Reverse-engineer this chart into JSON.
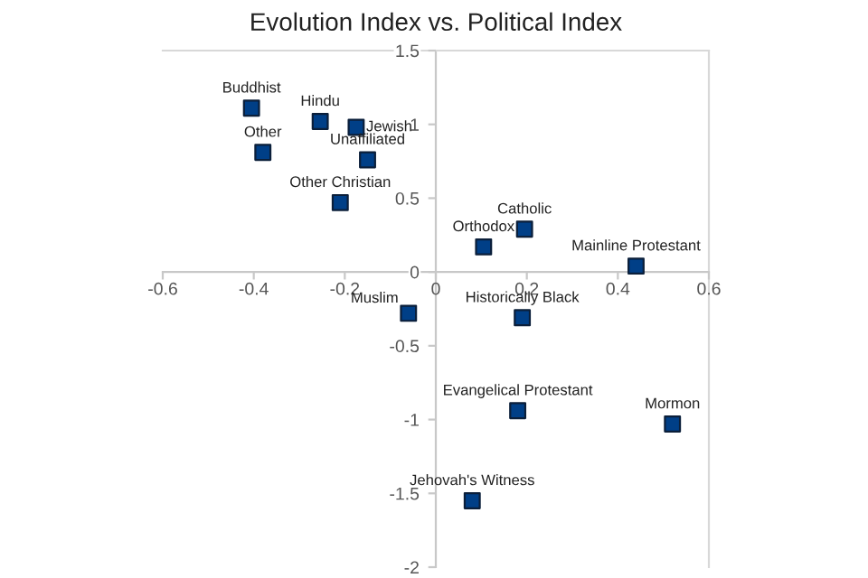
{
  "chart_data": {
    "type": "scatter",
    "title": "Evolution Index vs. Political Index",
    "x": [
      -0.405,
      -0.254,
      -0.175,
      -0.38,
      -0.15,
      -0.21,
      0.195,
      0.105,
      0.44,
      -0.06,
      0.19,
      0.18,
      0.52,
      0.08
    ],
    "values": [
      1.11,
      1.02,
      0.98,
      0.81,
      0.76,
      0.47,
      0.29,
      0.17,
      0.04,
      -0.28,
      -0.31,
      -0.94,
      -1.03,
      -1.55
    ],
    "color": "#003f87",
    "marker": "square",
    "grid": false,
    "xlim": [
      -0.6,
      0.6
    ],
    "ylim": [
      -2,
      1.5
    ],
    "xticks": [
      -0.6,
      -0.4,
      -0.2,
      0,
      0.2,
      0.4,
      0.6
    ],
    "yticks": [
      -2,
      -1.5,
      -1,
      -0.5,
      0,
      0.5,
      1,
      1.5
    ],
    "annotations": [
      {
        "text": "Buddhist",
        "x": -0.405,
        "y": 1.11
      },
      {
        "text": "Hindu",
        "x": -0.254,
        "y": 1.02
      },
      {
        "text": "Jewish",
        "x": -0.175,
        "y": 0.98
      },
      {
        "text": "Other",
        "x": -0.38,
        "y": 0.81
      },
      {
        "text": "Unaffiliated",
        "x": -0.15,
        "y": 0.76
      },
      {
        "text": "Other Christian",
        "x": -0.21,
        "y": 0.47
      },
      {
        "text": "Catholic",
        "x": 0.195,
        "y": 0.29
      },
      {
        "text": "Orthodox",
        "x": 0.105,
        "y": 0.17
      },
      {
        "text": "Mainline Protestant",
        "x": 0.44,
        "y": 0.04
      },
      {
        "text": "Muslim",
        "x": -0.06,
        "y": -0.28
      },
      {
        "text": "Historically Black",
        "x": 0.19,
        "y": -0.31
      },
      {
        "text": "Evangelical Protestant",
        "x": 0.18,
        "y": -0.94
      },
      {
        "text": "Mormon",
        "x": 0.52,
        "y": -1.03
      },
      {
        "text": "Jehovah's Witness",
        "x": 0.08,
        "y": -1.55
      }
    ]
  }
}
